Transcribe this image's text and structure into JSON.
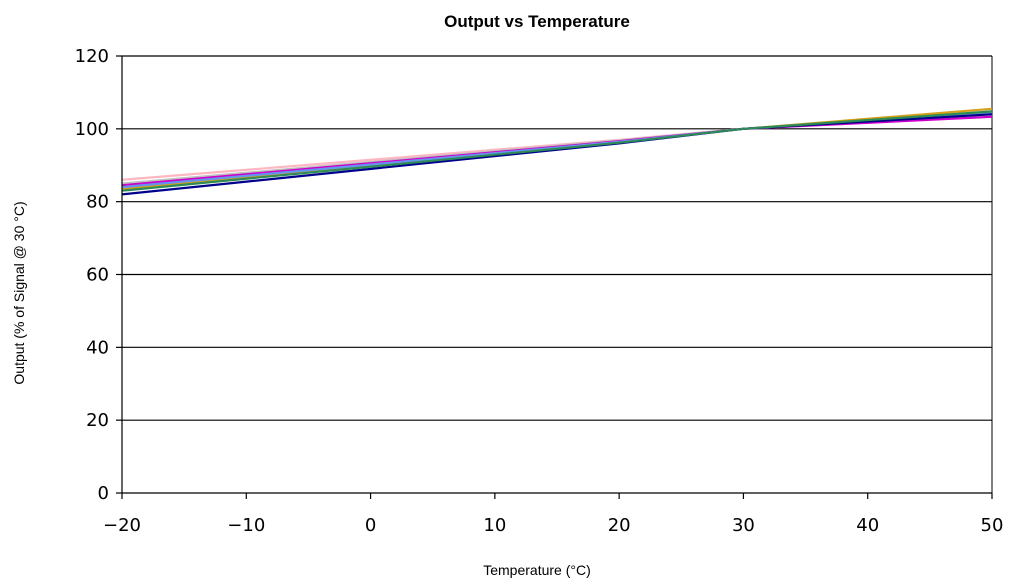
{
  "chart_data": {
    "type": "line",
    "title": "Output vs Temperature",
    "xlabel": "Temperature (°C)",
    "ylabel": "Output (% of Signal @ 30 °C)",
    "xlim": [
      -20,
      50
    ],
    "ylim": [
      0,
      120
    ],
    "x_ticks": [
      -20,
      -10,
      0,
      10,
      20,
      30,
      40,
      50
    ],
    "x_tick_labels": [
      "−20",
      "−10",
      "0",
      "10",
      "20",
      "30",
      "40",
      "50"
    ],
    "y_ticks": [
      0,
      20,
      40,
      60,
      80,
      100,
      120
    ],
    "y_tick_labels": [
      "0",
      "20",
      "40",
      "60",
      "80",
      "100",
      "120"
    ],
    "grid": "horizontal major",
    "legend": "none",
    "x": [
      -20,
      20,
      30,
      50
    ],
    "series": [
      {
        "color": "#ffb6c1",
        "values": [
          86.0,
          97.0,
          100,
          103.5
        ]
      },
      {
        "color": "#c0c0c0",
        "values": [
          85.0,
          96.8,
          100,
          104.0
        ]
      },
      {
        "color": "#cc00cc",
        "values": [
          84.5,
          96.6,
          100,
          103.3
        ]
      },
      {
        "color": "#d4a017",
        "values": [
          83.5,
          96.3,
          100,
          105.5
        ]
      },
      {
        "color": "#6495ed",
        "values": [
          84.0,
          96.4,
          100,
          104.5
        ]
      },
      {
        "color": "#00008b",
        "values": [
          82.0,
          96.0,
          100,
          104.0
        ]
      },
      {
        "color": "#2e8b57",
        "values": [
          83.0,
          96.2,
          100,
          104.8
        ]
      }
    ]
  }
}
